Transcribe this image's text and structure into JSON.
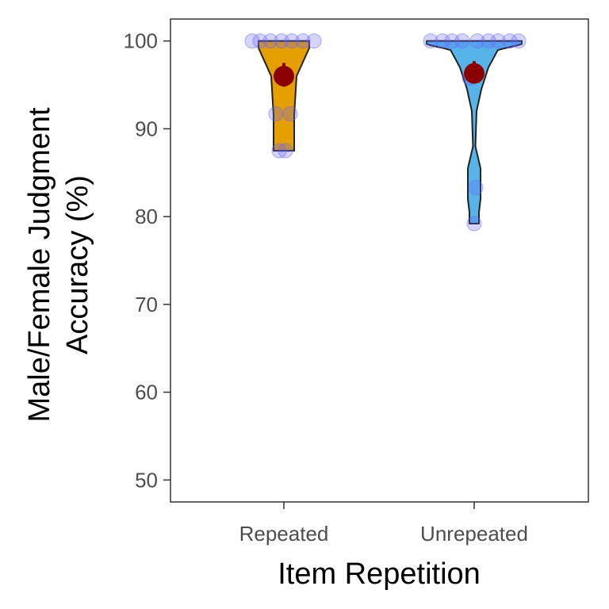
{
  "chart_data": {
    "type": "violin",
    "xlabel": "Item Repetition",
    "ylabel_lines": [
      "Male/Female Judgment",
      "Accuracy (%)"
    ],
    "categories": [
      "Repeated",
      "Unrepeated"
    ],
    "ylim": [
      47.5,
      102.5
    ],
    "yticks": [
      50,
      60,
      70,
      80,
      90,
      100
    ],
    "grid": false,
    "legend": "none",
    "colors": {
      "Repeated": "#E69F00",
      "Unrepeated": "#56B4E9",
      "points": "#6666FF",
      "summary": "#8B0000",
      "outline": "#222222"
    },
    "series": [
      {
        "category": "Repeated",
        "points": [
          100,
          100,
          100,
          100,
          100,
          100,
          100,
          91.7,
          91.7,
          87.5,
          87.5
        ],
        "mean": 96.0,
        "ci": [
          94.8,
          97.5
        ],
        "violin_range": [
          87.5,
          100
        ]
      },
      {
        "category": "Unrepeated",
        "points": [
          100,
          100,
          100,
          100,
          100,
          100,
          100,
          100,
          100,
          95.8,
          83.3,
          79.2
        ],
        "mean": 96.3,
        "ci": [
          95.2,
          97.7
        ],
        "violin_range": [
          79.2,
          100
        ]
      }
    ]
  }
}
